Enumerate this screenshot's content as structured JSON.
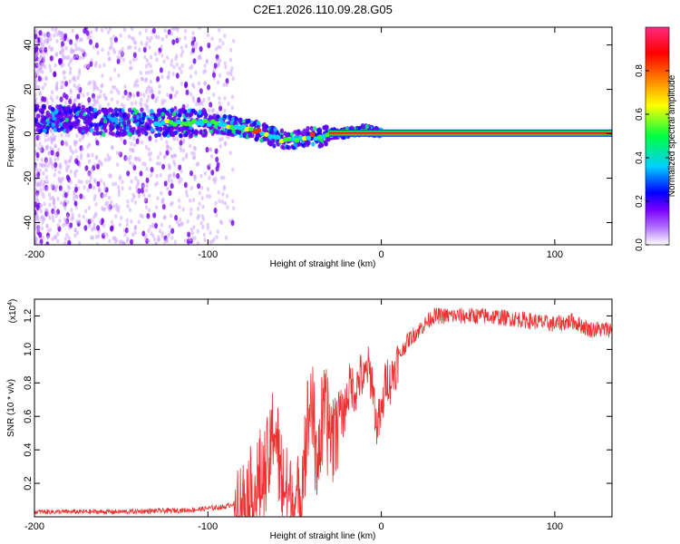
{
  "chart_data": [
    {
      "type": "heatmap",
      "title": "C2E1.2026.110.09.28.G05",
      "xlabel": "Height of straight line (km)",
      "ylabel": "Frequency (Hz)",
      "xlim": [
        -200,
        133
      ],
      "ylim": [
        -50,
        48
      ],
      "xticks": [
        -200,
        -100,
        0,
        100
      ],
      "yticks": [
        -40,
        -20,
        0,
        20,
        40
      ],
      "xtick_labels": [
        "-200",
        "-100",
        "0",
        "100"
      ],
      "ytick_labels": [
        "-40",
        "-20",
        "0",
        "20",
        "40"
      ],
      "colorbar": {
        "label": "Normalized spectral amplitude",
        "range": [
          0,
          1
        ],
        "ticks": [
          0.0,
          0.2,
          0.4,
          0.6,
          0.8
        ],
        "tick_labels": [
          "0.0",
          "0.2",
          "0.4",
          "0.6",
          "0.8"
        ],
        "colors": [
          "#ffffff",
          "#b070ff",
          "#7a00ff",
          "#0000ff",
          "#00d0ff",
          "#00ff40",
          "#ffff00",
          "#ff8000",
          "#ff0000",
          "#ff2a80"
        ]
      },
      "ridge": {
        "x": [
          -200,
          -180,
          -160,
          -140,
          -120,
          -100,
          -90,
          -80,
          -70,
          -60,
          -55,
          -50,
          -45,
          -40,
          -35,
          -30,
          -25,
          -20,
          -15,
          -10,
          -5,
          0,
          20,
          60,
          100,
          133
        ],
        "y": [
          7,
          6.5,
          5.5,
          5,
          5,
          5,
          4,
          3,
          1,
          -2,
          -3,
          -3,
          -2,
          -1,
          -2,
          0,
          0,
          0.5,
          1,
          2,
          1,
          0.5,
          0.3,
          0.3,
          0.3,
          0.3
        ]
      }
    },
    {
      "type": "line",
      "title": "",
      "xlabel": "Height of straight line (km)",
      "ylabel": "SNR (10 * v/v)",
      "y_scale_label": "(x10",
      "y_scale_exp": "4",
      "y_scale_close": ")",
      "xlim": [
        -200,
        133
      ],
      "ylim": [
        0,
        1.3
      ],
      "xticks": [
        -200,
        -100,
        0,
        100
      ],
      "yticks": [
        0.2,
        0.4,
        0.6,
        0.8,
        1.0,
        1.2
      ],
      "xtick_labels": [
        "-200",
        "-100",
        "0",
        "100"
      ],
      "ytick_labels": [
        "0.2",
        "0.4",
        "0.6",
        "0.8",
        "1.0",
        "1.2"
      ],
      "series": [
        {
          "name": "SNR",
          "color": "#ee3030",
          "x": [
            -200,
            -150,
            -110,
            -100,
            -90,
            -80,
            -75,
            -70,
            -65,
            -62,
            -60,
            -58,
            -55,
            -52,
            -50,
            -47,
            -45,
            -42,
            -40,
            -38,
            -35,
            -33,
            -30,
            -28,
            -25,
            -22,
            -20,
            -18,
            -15,
            -12,
            -10,
            -8,
            -5,
            -3,
            0,
            3,
            5,
            10,
            15,
            20,
            25,
            30,
            40,
            60,
            80,
            100,
            110,
            120,
            133
          ],
          "y": [
            0.03,
            0.03,
            0.04,
            0.05,
            0.06,
            0.1,
            0.12,
            0.18,
            0.3,
            0.55,
            0.45,
            0.25,
            0.15,
            0.08,
            0.1,
            0.05,
            0.35,
            0.6,
            0.75,
            0.35,
            0.45,
            0.6,
            0.55,
            0.5,
            0.65,
            0.6,
            0.7,
            0.8,
            0.75,
            0.85,
            0.8,
            0.9,
            0.8,
            0.55,
            0.6,
            0.85,
            0.8,
            0.95,
            1.05,
            1.1,
            1.15,
            1.2,
            1.2,
            1.2,
            1.18,
            1.15,
            1.17,
            1.12,
            1.12
          ]
        }
      ]
    }
  ]
}
